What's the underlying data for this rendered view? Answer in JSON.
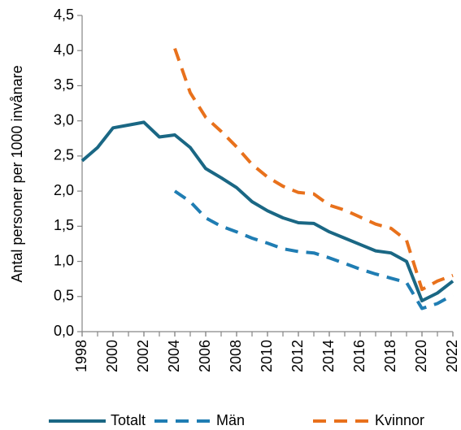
{
  "chart_data": {
    "type": "line",
    "y_label": "Antal personer per 1000 invånare",
    "x": [
      1998,
      1999,
      2000,
      2001,
      2002,
      2003,
      2004,
      2005,
      2006,
      2007,
      2008,
      2009,
      2010,
      2011,
      2012,
      2013,
      2014,
      2015,
      2016,
      2017,
      2018,
      2019,
      2020,
      2021,
      2022
    ],
    "xlim": [
      1998,
      2022
    ],
    "xticks": [
      1998,
      2000,
      2002,
      2004,
      2006,
      2008,
      2010,
      2012,
      2014,
      2016,
      2018,
      2020,
      2022
    ],
    "ylim": [
      0,
      4.5
    ],
    "yticks": [
      {
        "value": 0,
        "label": "0,0"
      },
      {
        "value": 0.5,
        "label": "0,5"
      },
      {
        "value": 1,
        "label": "1,0"
      },
      {
        "value": 1.5,
        "label": "1,5"
      },
      {
        "value": 2,
        "label": "2,0"
      },
      {
        "value": 2.5,
        "label": "2,5"
      },
      {
        "value": 3,
        "label": "3,0"
      },
      {
        "value": 3.5,
        "label": "3,5"
      },
      {
        "value": 4,
        "label": "4,0"
      },
      {
        "value": 4.5,
        "label": "4,5"
      }
    ],
    "grid": false,
    "legend": "bottom",
    "series": [
      {
        "name": "Totalt",
        "color": "#1a6784",
        "dashed": false,
        "values": [
          2.43,
          2.62,
          2.9,
          2.94,
          2.98,
          2.77,
          2.8,
          2.62,
          2.32,
          2.19,
          2.05,
          1.85,
          1.72,
          1.62,
          1.55,
          1.54,
          1.42,
          1.33,
          1.24,
          1.15,
          1.12,
          1.0,
          0.44,
          0.55,
          0.72
        ]
      },
      {
        "name": "Män",
        "color": "#1f7db3",
        "dashed": true,
        "values": [
          null,
          null,
          null,
          null,
          null,
          null,
          2.0,
          1.85,
          1.62,
          1.5,
          1.42,
          1.33,
          1.26,
          1.18,
          1.14,
          1.12,
          1.05,
          0.97,
          0.89,
          0.82,
          0.76,
          0.7,
          0.33,
          0.4,
          0.52
        ]
      },
      {
        "name": "Kvinnor",
        "color": "#e8711c",
        "dashed": true,
        "values": [
          null,
          null,
          null,
          null,
          null,
          null,
          4.03,
          3.4,
          3.05,
          2.85,
          2.63,
          2.38,
          2.2,
          2.07,
          1.98,
          1.96,
          1.8,
          1.73,
          1.63,
          1.53,
          1.47,
          1.3,
          0.6,
          0.72,
          0.8
        ]
      }
    ]
  }
}
